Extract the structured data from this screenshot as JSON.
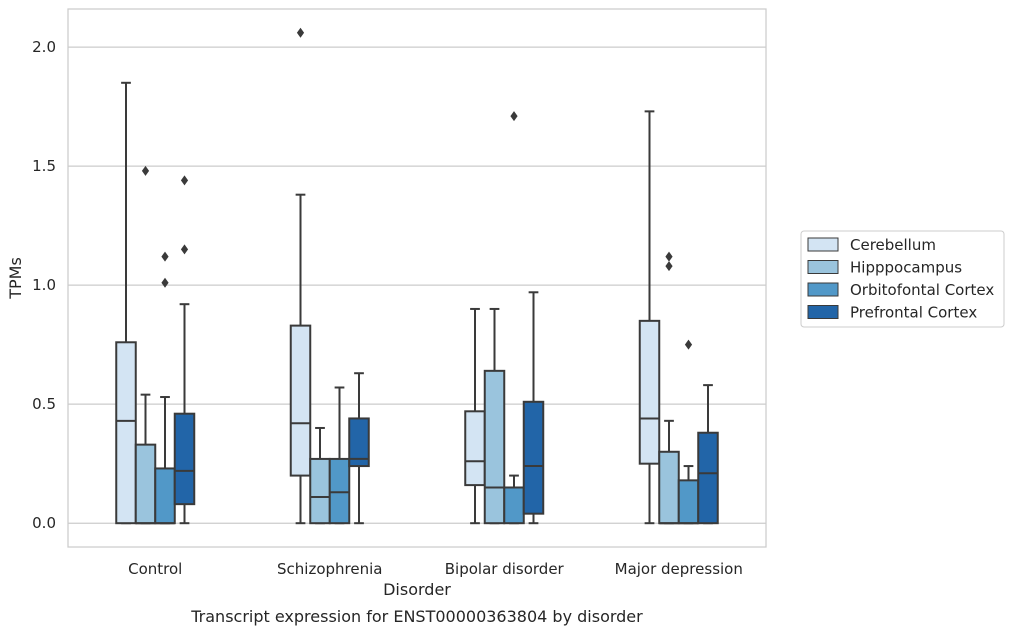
{
  "chart_data": {
    "type": "box",
    "caption": "Transcript expression for ENST00000363804 by disorder",
    "xlabel": "Disorder",
    "ylabel": "TPMs",
    "ylim": [
      -0.1,
      2.16
    ],
    "yticks": [
      0.0,
      0.5,
      1.0,
      1.5,
      2.0
    ],
    "ytick_labels": [
      "0.0",
      "0.5",
      "1.0",
      "1.5",
      "2.0"
    ],
    "grid": "horizontal",
    "legend_position": "right",
    "categories": [
      "Control",
      "Schizophrenia",
      "Bipolar disorder",
      "Major depression"
    ],
    "series": [
      {
        "name": "Cerebellum",
        "color": "#d3e4f3",
        "boxes": [
          {
            "whisker_low": 0.0,
            "q1": 0.0,
            "median": 0.43,
            "q3": 0.76,
            "whisker_high": 1.85,
            "outliers": []
          },
          {
            "whisker_low": 0.0,
            "q1": 0.2,
            "median": 0.42,
            "q3": 0.83,
            "whisker_high": 1.38,
            "outliers": [
              2.06
            ]
          },
          {
            "whisker_low": 0.0,
            "q1": 0.16,
            "median": 0.26,
            "q3": 0.47,
            "whisker_high": 0.9,
            "outliers": []
          },
          {
            "whisker_low": 0.0,
            "q1": 0.25,
            "median": 0.44,
            "q3": 0.85,
            "whisker_high": 1.73,
            "outliers": []
          }
        ]
      },
      {
        "name": "Hipppocampus",
        "color": "#9ac4dd",
        "boxes": [
          {
            "whisker_low": 0.0,
            "q1": 0.0,
            "median": 0.0,
            "q3": 0.33,
            "whisker_high": 0.54,
            "outliers": [
              1.48
            ]
          },
          {
            "whisker_low": 0.0,
            "q1": 0.0,
            "median": 0.11,
            "q3": 0.27,
            "whisker_high": 0.4,
            "outliers": []
          },
          {
            "whisker_low": 0.0,
            "q1": 0.0,
            "median": 0.15,
            "q3": 0.64,
            "whisker_high": 0.9,
            "outliers": []
          },
          {
            "whisker_low": 0.0,
            "q1": 0.0,
            "median": 0.0,
            "q3": 0.3,
            "whisker_high": 0.43,
            "outliers": [
              1.08,
              1.12
            ]
          }
        ]
      },
      {
        "name": "Orbitofontal Cortex",
        "color": "#5198c8",
        "boxes": [
          {
            "whisker_low": 0.0,
            "q1": 0.0,
            "median": 0.0,
            "q3": 0.23,
            "whisker_high": 0.53,
            "outliers": [
              1.01,
              1.12
            ]
          },
          {
            "whisker_low": 0.0,
            "q1": 0.0,
            "median": 0.13,
            "q3": 0.27,
            "whisker_high": 0.57,
            "outliers": []
          },
          {
            "whisker_low": 0.0,
            "q1": 0.0,
            "median": 0.15,
            "q3": 0.15,
            "whisker_high": 0.2,
            "outliers": [
              1.71
            ]
          },
          {
            "whisker_low": 0.0,
            "q1": 0.0,
            "median": 0.0,
            "q3": 0.18,
            "whisker_high": 0.24,
            "outliers": [
              0.75
            ]
          }
        ]
      },
      {
        "name": "Prefrontal Cortex",
        "color": "#2265a8",
        "boxes": [
          {
            "whisker_low": 0.0,
            "q1": 0.08,
            "median": 0.22,
            "q3": 0.46,
            "whisker_high": 0.92,
            "outliers": [
              1.15,
              1.44
            ]
          },
          {
            "whisker_low": 0.0,
            "q1": 0.24,
            "median": 0.27,
            "q3": 0.44,
            "whisker_high": 0.63,
            "outliers": []
          },
          {
            "whisker_low": 0.0,
            "q1": 0.04,
            "median": 0.24,
            "q3": 0.51,
            "whisker_high": 0.97,
            "outliers": []
          },
          {
            "whisker_low": 0.0,
            "q1": 0.0,
            "median": 0.21,
            "q3": 0.38,
            "whisker_high": 0.58,
            "outliers": []
          }
        ]
      }
    ]
  }
}
